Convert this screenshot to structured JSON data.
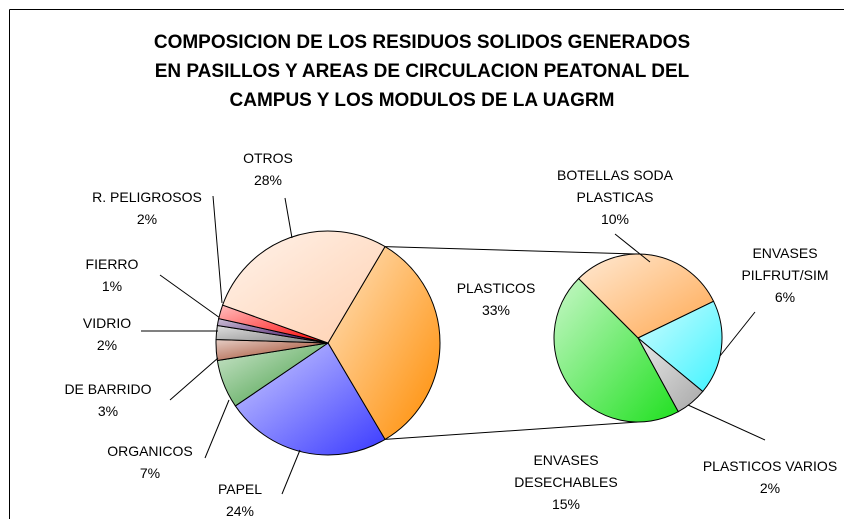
{
  "chart_data": [
    {
      "type": "pie",
      "title": "COMPOSICION DE LOS RESIDUOS SOLIDOS GENERADOS\nEN PASILLOS Y AREAS DE CIRCULACION PEATONAL DEL\nCAMPUS Y LOS MODULOS DE LA UAGRM",
      "categories": [
        "PLASTICOS",
        "PAPEL",
        "ORGANICOS",
        "DE BARRIDO",
        "VIDRIO",
        "FIERRO",
        "R. PELIGROSOS",
        "OTROS"
      ],
      "values": [
        33,
        24,
        7,
        3,
        2,
        1,
        2,
        28
      ],
      "value_labels": [
        "33%",
        "24%",
        "7%",
        "3%",
        "2%",
        "1%",
        "2%",
        "28%"
      ],
      "colors": [
        "#ff8c00",
        "#3a3aff",
        "#3c9a3c",
        "#9a3a1a",
        "#808080",
        "#33005a",
        "#ff0000",
        "#ffd0b0"
      ]
    },
    {
      "type": "pie",
      "categories": [
        "BOTELLAS SODA PLASTICAS",
        "ENVASES PILFRUT/SIM",
        "PLASTICOS VARIOS",
        "ENVASES DESECHABLES"
      ],
      "values": [
        10,
        6,
        2,
        15
      ],
      "value_labels": [
        "10%",
        "6%",
        "2%",
        "15%"
      ],
      "colors": [
        "#ffa850",
        "#40f4ff",
        "#a8a8a8",
        "#20e020"
      ]
    }
  ]
}
